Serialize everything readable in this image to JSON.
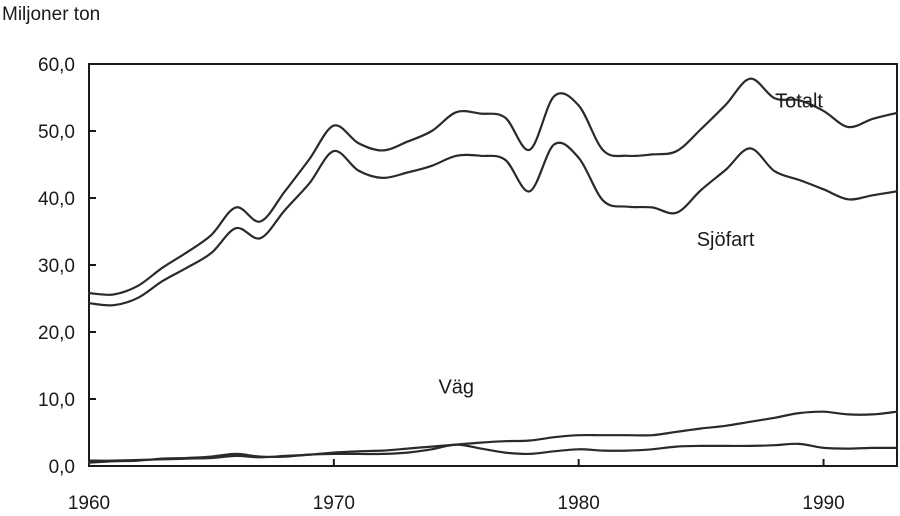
{
  "chart_data": {
    "type": "line",
    "title": "",
    "ylabel": "Miljoner ton",
    "xlabel": "",
    "xlim": [
      1960,
      1993
    ],
    "ylim": [
      0,
      60
    ],
    "grid": false,
    "legend": "none",
    "x_ticks": [
      1960,
      1970,
      1980,
      1990
    ],
    "x_tick_labels": [
      "1960",
      "1970",
      "1980",
      "1990"
    ],
    "y_ticks": [
      0,
      10,
      20,
      30,
      40,
      50,
      60
    ],
    "y_tick_labels": [
      "0,0",
      "10,0",
      "20,0",
      "30,0",
      "40,0",
      "50,0",
      "60,0"
    ],
    "x": [
      1960,
      1961,
      1962,
      1963,
      1964,
      1965,
      1966,
      1967,
      1968,
      1969,
      1970,
      1971,
      1972,
      1973,
      1974,
      1975,
      1976,
      1977,
      1978,
      1979,
      1980,
      1981,
      1982,
      1983,
      1984,
      1985,
      1986,
      1987,
      1988,
      1989,
      1990,
      1991,
      1992,
      1993
    ],
    "series": [
      {
        "name": "Totalt",
        "label_at": [
          1989,
          53.5
        ],
        "values": [
          25.8,
          25.6,
          26.9,
          29.6,
          31.9,
          34.5,
          38.6,
          36.5,
          41.0,
          45.8,
          50.8,
          48.2,
          47.1,
          48.4,
          50.0,
          52.8,
          52.6,
          52.0,
          47.2,
          55.2,
          53.8,
          47.1,
          46.3,
          46.5,
          47.0,
          50.3,
          53.9,
          57.8,
          54.9,
          54.6,
          53.0,
          50.6,
          51.8,
          52.7
        ]
      },
      {
        "name": "Sjöfart",
        "label_at": [
          1986,
          32.8
        ],
        "values": [
          24.3,
          24.0,
          25.1,
          27.6,
          29.6,
          31.8,
          35.5,
          34.0,
          38.2,
          42.2,
          47.0,
          44.1,
          43.0,
          43.8,
          44.8,
          46.3,
          46.3,
          45.7,
          41.0,
          48.0,
          46.0,
          39.6,
          38.7,
          38.6,
          37.8,
          41.2,
          44.2,
          47.4,
          44.0,
          42.7,
          41.3,
          39.8,
          40.4,
          41.0
        ]
      },
      {
        "name": "Väg",
        "label_at": [
          1975,
          10.8
        ],
        "values": [
          0.8,
          0.8,
          0.9,
          1.0,
          1.1,
          1.2,
          1.5,
          1.3,
          1.5,
          1.7,
          2.0,
          2.2,
          2.3,
          2.6,
          2.9,
          3.2,
          3.5,
          3.7,
          3.8,
          4.3,
          4.6,
          4.6,
          4.6,
          4.6,
          5.1,
          5.6,
          6.0,
          6.6,
          7.2,
          7.9,
          8.1,
          7.7,
          7.7,
          8.1
        ]
      },
      {
        "name": "",
        "values": [
          0.5,
          0.7,
          0.8,
          1.1,
          1.2,
          1.4,
          1.8,
          1.4,
          1.4,
          1.7,
          1.8,
          1.8,
          1.8,
          2.0,
          2.5,
          3.2,
          2.6,
          2.0,
          1.8,
          2.2,
          2.5,
          2.3,
          2.3,
          2.5,
          2.9,
          3.0,
          3.0,
          3.0,
          3.1,
          3.3,
          2.7,
          2.6,
          2.7,
          2.7
        ]
      }
    ]
  }
}
